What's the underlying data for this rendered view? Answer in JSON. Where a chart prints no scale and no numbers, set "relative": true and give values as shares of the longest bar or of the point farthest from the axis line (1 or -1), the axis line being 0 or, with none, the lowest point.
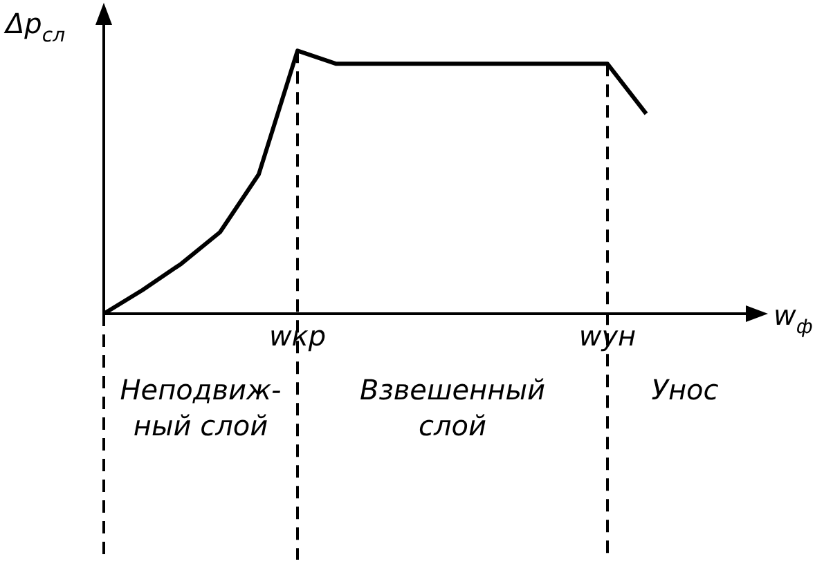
{
  "chart_data": {
    "type": "line",
    "relative": true,
    "xlabel": "w$_{ф}$",
    "ylabel": "Δp$_{сл}$",
    "categories": [
      null,
      null,
      null,
      null,
      null,
      "wкр",
      null,
      null,
      null,
      null,
      null,
      null,
      null,
      "wун",
      null
    ],
    "series": [
      {
        "color": "#000000",
        "values": [
          0,
          0.09,
          0.19,
          0.31,
          0.53,
          1,
          0.95,
          0.95,
          0.95,
          0.95,
          0.95,
          0.95,
          0.95,
          0.95,
          0.76
        ]
      }
    ],
    "legend": false,
    "marker": "none",
    "line_style": "solid",
    "ref_lines": [
      {
        "axis": "x",
        "value": "wкр",
        "line_style": "dashed"
      },
      {
        "axis": "x",
        "value": "wун",
        "line_style": "dashed"
      }
    ],
    "annotations": [
      "Неподвиж-\nный слой",
      "Взвешенный\nслой",
      "Унос"
    ]
  }
}
